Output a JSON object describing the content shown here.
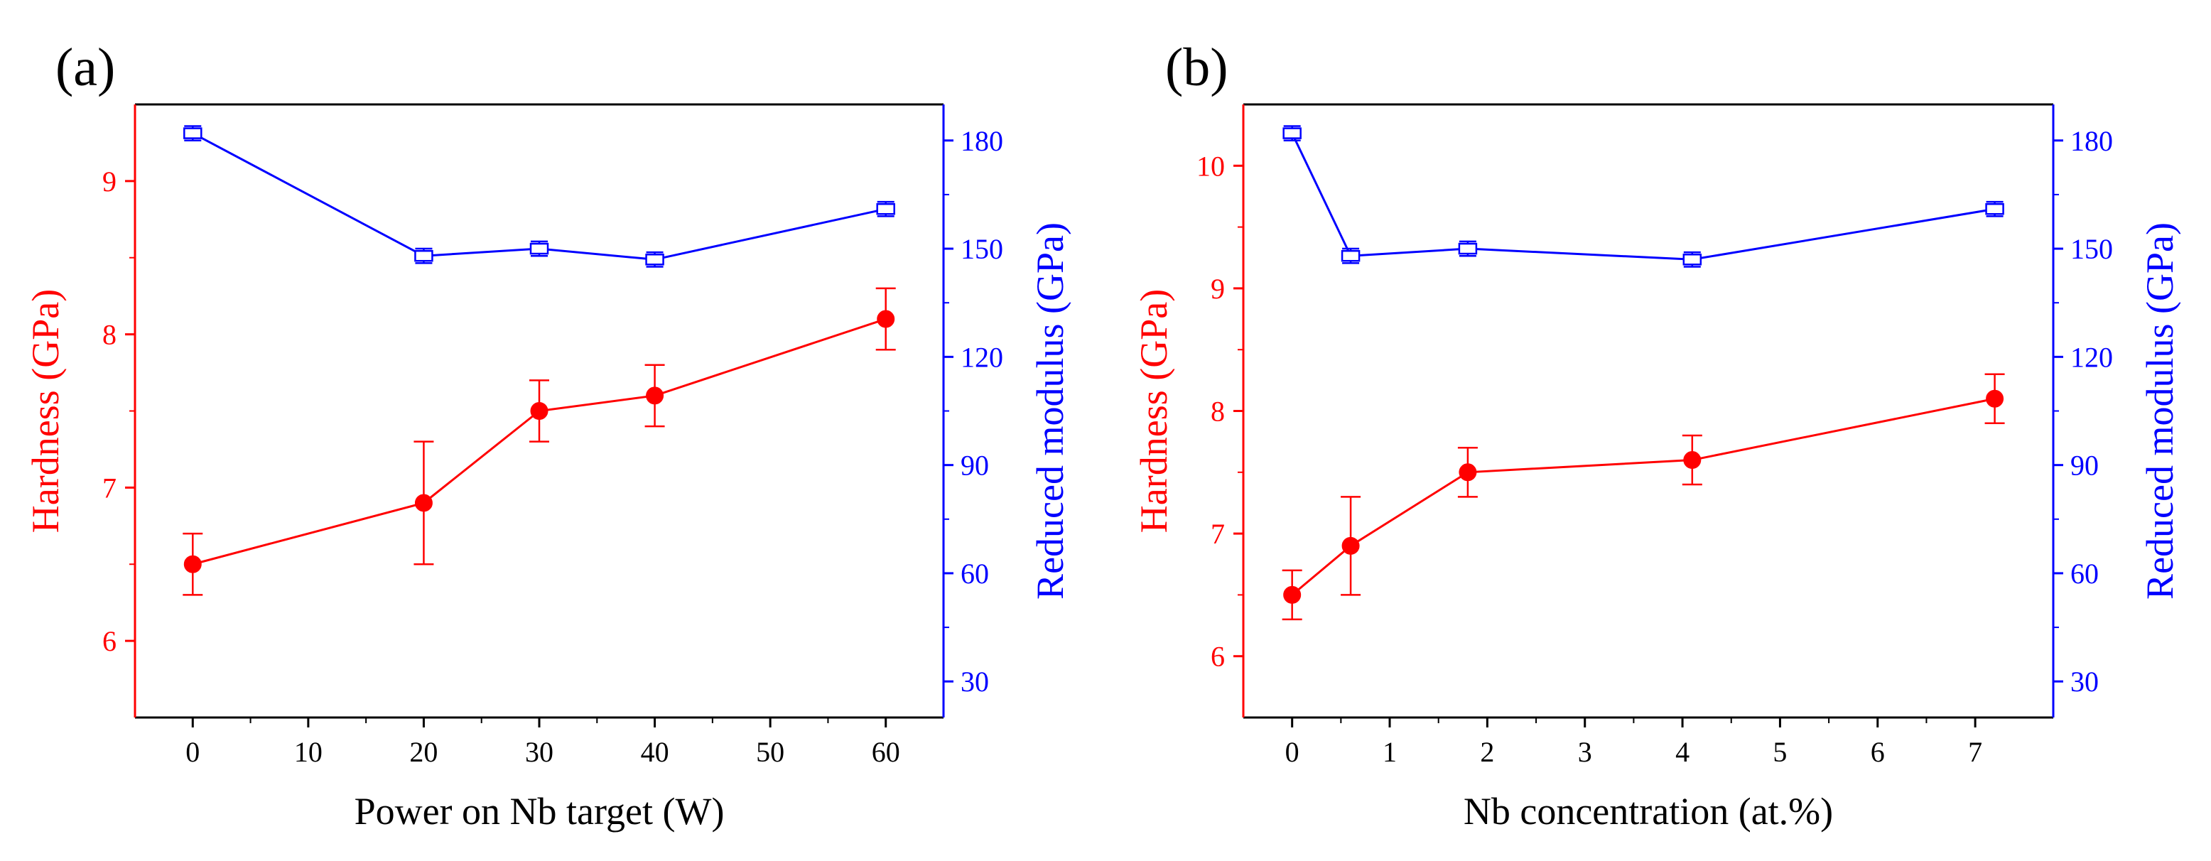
{
  "colors": {
    "hardness": "#ff0000",
    "modulus": "#0000ff",
    "axis": "#000000"
  },
  "chart_data": [
    {
      "panel_label": "(a)",
      "type": "line",
      "xlabel": "Power on Nb target (W)",
      "ylabel_left": "Hardness (GPa)",
      "ylabel_right": "Reduced modulus (GPa)",
      "xlim": [
        -5,
        65
      ],
      "ylim_left": [
        5.5,
        9.5
      ],
      "ylim_right": [
        20,
        190
      ],
      "xticks": [
        0,
        10,
        20,
        30,
        40,
        50,
        60
      ],
      "xtick_labels": [
        "0",
        "10",
        "20",
        "30",
        "40",
        "50",
        "60"
      ],
      "yticks_left": [
        6,
        7,
        8,
        9
      ],
      "ytick_labels_left": [
        "6",
        "7",
        "8",
        "9"
      ],
      "yticks_right": [
        30,
        60,
        90,
        120,
        150,
        180
      ],
      "ytick_labels_right": [
        "30",
        "60",
        "90",
        "120",
        "150",
        "180"
      ],
      "series": [
        {
          "name": "Hardness",
          "axis": "left",
          "marker": "filled-circle",
          "x": [
            0,
            20,
            30,
            40,
            60
          ],
          "values": [
            6.5,
            6.9,
            7.5,
            7.6,
            8.1
          ],
          "errors": [
            0.2,
            0.4,
            0.2,
            0.2,
            0.2
          ]
        },
        {
          "name": "Reduced modulus",
          "axis": "right",
          "marker": "open-square",
          "x": [
            0,
            20,
            30,
            40,
            60
          ],
          "values": [
            182,
            148,
            150,
            147,
            161
          ],
          "errors": [
            2,
            2,
            2,
            2,
            2
          ]
        }
      ]
    },
    {
      "panel_label": "(b)",
      "type": "line",
      "xlabel": "Nb concentration (at.%)",
      "ylabel_left": "Hardness (GPa)",
      "ylabel_right": "Reduced modulus (GPa)",
      "xlim": [
        -0.5,
        7.8
      ],
      "ylim_left": [
        5.5,
        10.5
      ],
      "ylim_right": [
        20,
        190
      ],
      "xticks": [
        0,
        1,
        2,
        3,
        4,
        5,
        6,
        7
      ],
      "xtick_labels": [
        "0",
        "1",
        "2",
        "3",
        "4",
        "5",
        "6",
        "7"
      ],
      "yticks_left": [
        6,
        7,
        8,
        9,
        10
      ],
      "ytick_labels_left": [
        "6",
        "7",
        "8",
        "9",
        "10"
      ],
      "yticks_right": [
        30,
        60,
        90,
        120,
        150,
        180
      ],
      "ytick_labels_right": [
        "30",
        "60",
        "90",
        "120",
        "150",
        "180"
      ],
      "series": [
        {
          "name": "Hardness",
          "axis": "left",
          "marker": "filled-circle",
          "x": [
            0,
            0.6,
            1.8,
            4.1,
            7.2
          ],
          "values": [
            6.5,
            6.9,
            7.5,
            7.6,
            8.1
          ],
          "errors": [
            0.2,
            0.4,
            0.2,
            0.2,
            0.2
          ]
        },
        {
          "name": "Reduced modulus",
          "axis": "right",
          "marker": "open-square",
          "x": [
            0,
            0.6,
            1.8,
            4.1,
            7.2
          ],
          "values": [
            182,
            148,
            150,
            147,
            161
          ],
          "errors": [
            2,
            2,
            2,
            2,
            2
          ]
        }
      ]
    }
  ]
}
